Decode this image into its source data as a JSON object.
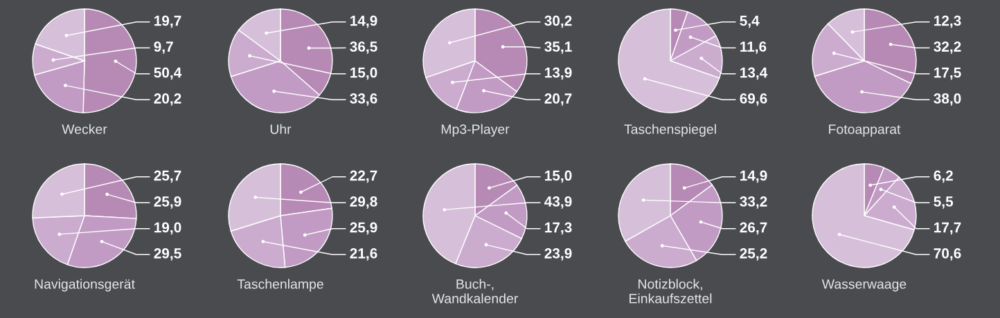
{
  "chart_data": [
    {
      "type": "pie",
      "title": "Wecker",
      "categories": [
        null,
        null,
        null,
        null
      ],
      "values": [
        50.4,
        20.2,
        9.7,
        19.7
      ],
      "value_labels": [
        "50,4",
        "20,2",
        "9,7",
        "19,7"
      ],
      "colors": [
        "#b68ab5",
        "#c19bc4",
        "#cbaccf",
        "#d6bfd9"
      ]
    },
    {
      "type": "pie",
      "title": "Uhr",
      "categories": [
        null,
        null,
        null,
        null
      ],
      "values": [
        36.5,
        33.6,
        15.0,
        14.9
      ],
      "value_labels": [
        "36,5",
        "33,6",
        "15,0",
        "14,9"
      ],
      "colors": [
        "#b68ab5",
        "#c19bc4",
        "#cbaccf",
        "#d6bfd9"
      ]
    },
    {
      "type": "pie",
      "title": "Mp3-Player",
      "categories": [
        null,
        null,
        null,
        null
      ],
      "values": [
        35.1,
        20.7,
        13.9,
        30.2
      ],
      "value_labels": [
        "35,1",
        "20,7",
        "13,9",
        "30,2"
      ],
      "colors": [
        "#b68ab5",
        "#c19bc4",
        "#cbaccf",
        "#d6bfd9"
      ]
    },
    {
      "type": "pie",
      "title": "Taschenspiegel",
      "categories": [
        null,
        null,
        null,
        null
      ],
      "values": [
        5.4,
        11.6,
        13.4,
        69.6
      ],
      "value_labels": [
        "5,4",
        "11,6",
        "13,4",
        "69,6"
      ],
      "colors": [
        "#b68ab5",
        "#c19bc4",
        "#cbaccf",
        "#d6bfd9"
      ]
    },
    {
      "type": "pie",
      "title": "Fotoapparat",
      "categories": [
        null,
        null,
        null,
        null
      ],
      "values": [
        32.2,
        38.0,
        17.5,
        12.3
      ],
      "value_labels": [
        "32,2",
        "38,0",
        "17,5",
        "12,3"
      ],
      "colors": [
        "#b68ab5",
        "#c19bc4",
        "#cbaccf",
        "#d6bfd9"
      ]
    },
    {
      "type": "pie",
      "title": "Navigationsgerät",
      "categories": [
        null,
        null,
        null,
        null
      ],
      "values": [
        25.9,
        29.5,
        19.0,
        25.7
      ],
      "value_labels": [
        "25,9",
        "29,5",
        "19,0",
        "25,7"
      ],
      "colors": [
        "#b68ab5",
        "#c19bc4",
        "#cbaccf",
        "#d6bfd9"
      ]
    },
    {
      "type": "pie",
      "title": "Taschenlampe",
      "categories": [
        null,
        null,
        null,
        null
      ],
      "values": [
        22.7,
        25.9,
        21.6,
        29.8
      ],
      "value_labels": [
        "22,7",
        "25,9",
        "21,6",
        "29,8"
      ],
      "colors": [
        "#b68ab5",
        "#c19bc4",
        "#cbaccf",
        "#d6bfd9"
      ]
    },
    {
      "type": "pie",
      "title": "Buch-,\nWandkalender",
      "categories": [
        null,
        null,
        null,
        null
      ],
      "values": [
        15.0,
        17.3,
        23.9,
        43.9
      ],
      "value_labels": [
        "15,0",
        "17,3",
        "23,9",
        "43,9"
      ],
      "colors": [
        "#b68ab5",
        "#c19bc4",
        "#cbaccf",
        "#d6bfd9"
      ]
    },
    {
      "type": "pie",
      "title": "Notizblock,\nEinkaufszettel",
      "categories": [
        null,
        null,
        null,
        null
      ],
      "values": [
        14.9,
        26.7,
        25.2,
        33.2
      ],
      "value_labels": [
        "14,9",
        "26,7",
        "25,2",
        "33,2"
      ],
      "colors": [
        "#b68ab5",
        "#c19bc4",
        "#cbaccf",
        "#d6bfd9"
      ]
    },
    {
      "type": "pie",
      "title": "Wasserwaage",
      "categories": [
        null,
        null,
        null,
        null
      ],
      "values": [
        6.2,
        5.5,
        17.7,
        70.6
      ],
      "value_labels": [
        "6,2",
        "5,5",
        "17,7",
        "70,6"
      ],
      "colors": [
        "#b68ab5",
        "#c19bc4",
        "#cbaccf",
        "#d6bfd9"
      ]
    }
  ]
}
